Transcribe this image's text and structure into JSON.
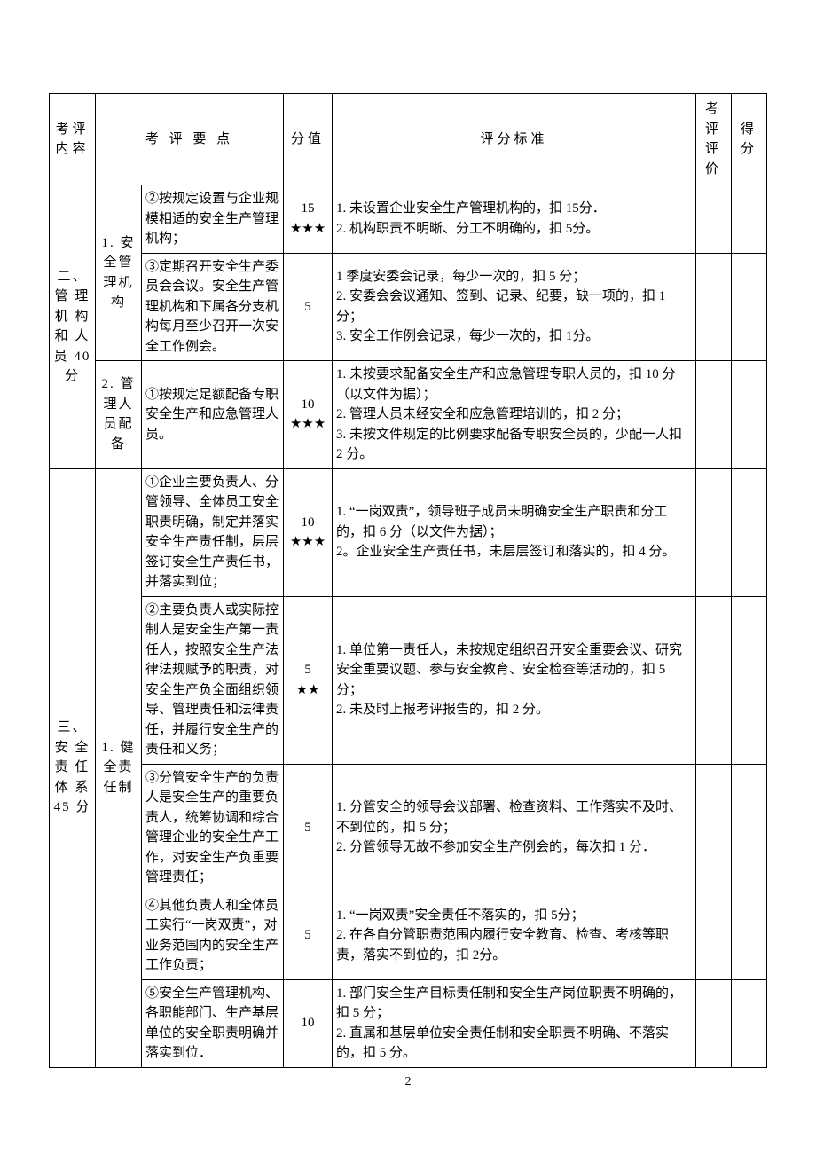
{
  "headers": {
    "category": "考评内容",
    "points": "考 评 要 点",
    "score": "分值",
    "criteria": "评分标准",
    "eval": "考评评价",
    "result": "得分"
  },
  "section2": {
    "title": "二、管 理机 构和 人员 40 分",
    "sub1": {
      "label": "1. 安全管理机构",
      "r1": {
        "point": "②按规定设置与企业规模相适的安全生产管理机构；",
        "score": "15\n★★★",
        "criteria": "1. 未设置企业安全生产管理机构的，扣 15分．\n2. 机构职责不明晰、分工不明确的，扣 5分。"
      },
      "r2": {
        "point": "③定期召开安全生产委员会会议。安全生产管理机构和下属各分支机构每月至少召开一次安全工作例会。",
        "score": "5",
        "criteria": "1 季度安委会记录，每少一次的，扣 5 分；\n2. 安委会会议通知、签到、记录、纪要，缺一项的，扣 1 分；\n3. 安全工作例会记录，每少一次的，扣 1分。"
      }
    },
    "sub2": {
      "label": "2. 管理人员配备",
      "r1": {
        "point": "①按规定足额配备专职安全生产和应急管理人员。",
        "score": "10\n★★★",
        "criteria": "1. 未按要求配备安全生产和应急管理专职人员的，扣 10 分（以文件为据）；\n2. 管理人员未经安全和应急管理培训的，扣 2 分；\n3. 未按文件规定的比例要求配备专职安全员的，少配一人扣 2 分。"
      }
    }
  },
  "section3": {
    "title": "三、安 全责 任体 系 45 分",
    "sub1": {
      "label": "1. 健全责任制",
      "r1": {
        "point": "①企业主要负责人、分管领导、全体员工安全职责明确，制定并落实安全生产责任制，层层签订安全生产责任书，并落实到位；",
        "score": "10\n★★★",
        "criteria": "1. “一岗双责”，领导班子成员未明确安全生产职责和分工的，扣 6 分（以文件为据）；\n2。企业安全生产责任书，未层层签订和落实的，扣 4 分。"
      },
      "r2": {
        "point": "②主要负责人或实际控制人是安全生产第一责任人，按照安全生产法律法规赋予的职责，对安全生产负全面组织领导、管理责任和法律责任，并履行安全生产的责任和义务；",
        "score": "5\n★★",
        "criteria": "1. 单位第一责任人，未按规定组织召开安全重要会议、研究安全重要议题、参与安全教育、安全检查等活动的，扣 5 分；\n2. 未及时上报考评报告的，扣 2 分。"
      },
      "r3": {
        "point": "③分管安全生产的负责人是安全生产的重要负责人，统筹协调和综合管理企业的安全生产工作，对安全生产负重要管理责任；",
        "score": "5",
        "criteria": "1. 分管安全的领导会议部署、检查资料、工作落实不及时、不到位的，扣 5 分；\n2. 分管领导无故不参加安全生产例会的，每次扣 1 分．"
      },
      "r4": {
        "point": "④其他负责人和全体员工实行“一岗双责”，对业务范围内的安全生产工作负责；",
        "score": "5",
        "criteria": "1. “一岗双责”安全责任不落实的，扣 5分；\n2. 在各自分管职责范围内履行安全教育、检查、考核等职责，落实不到位的，扣 2分。"
      },
      "r5": {
        "point": "⑤安全生产管理机构、各职能部门、生产基层单位的安全职责明确并落实到位．",
        "score": "10",
        "criteria": "1. 部门安全生产目标责任制和安全生产岗位职责不明确的，扣 5 分；\n2. 直属和基层单位安全责任制和安全职责不明确、不落实的，扣 5 分。"
      }
    }
  },
  "page_number": "2"
}
